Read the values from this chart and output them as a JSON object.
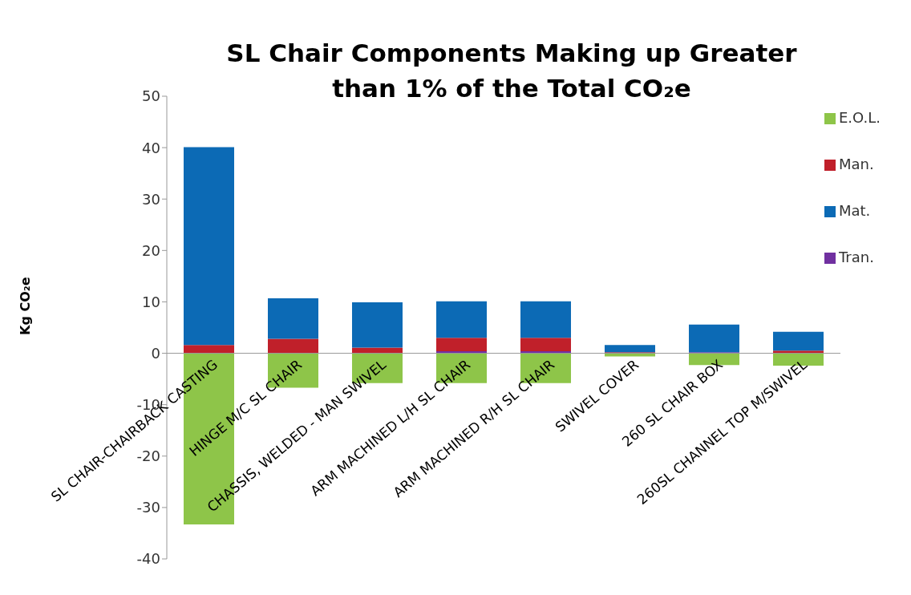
{
  "chart_data": {
    "type": "bar",
    "title": "SL Chair Components Making up Greater than 1% of the Total CO₂e",
    "ylabel": "Kg CO₂e",
    "categories": [
      "SL CHAIR-CHAIRBACK CASTING",
      "HINGE M/C SL CHAIR",
      "CHASSIS, WELDED - MAN SWIVEL",
      "ARM MACHINED L/H SL CHAIR",
      "ARM MACHINED R/H SL CHAIR",
      "SWIVEL COVER",
      "260 SL CHAIR BOX",
      "260SL CHANNEL TOP M/SWIVEL"
    ],
    "stacked": true,
    "series": [
      {
        "name": "Tran.",
        "color": "#7030a0",
        "values": [
          null,
          null,
          null,
          0.4,
          0.4,
          null,
          0.2,
          null
        ]
      },
      {
        "name": "Man.",
        "color": "#c0202a",
        "values": [
          1.6,
          2.8,
          1.1,
          2.6,
          2.6,
          0.2,
          null,
          0.5
        ]
      },
      {
        "name": "Mat.",
        "color": "#0c6ab5",
        "values": [
          38.5,
          7.9,
          8.8,
          7.1,
          7.1,
          1.4,
          5.4,
          3.7
        ]
      },
      {
        "name": "E.O.L.",
        "color": "#8ec549",
        "values": [
          -33.3,
          -6.7,
          -5.8,
          -5.8,
          -5.8,
          -0.6,
          -2.3,
          -2.4
        ]
      }
    ],
    "ylim": [
      -40,
      50
    ],
    "yticks": [
      -40,
      -30,
      -20,
      -10,
      0,
      10,
      20,
      30,
      40,
      50
    ],
    "legend": "right"
  }
}
